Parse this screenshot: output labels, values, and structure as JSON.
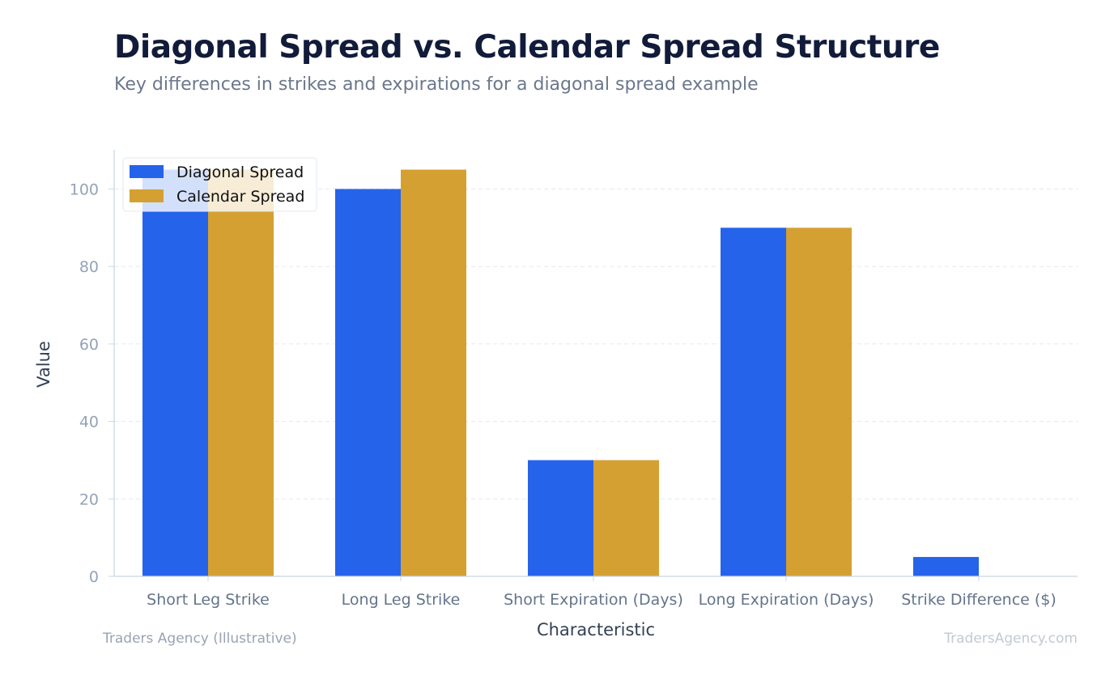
{
  "header": {
    "title": "Diagonal Spread vs. Calendar Spread Structure",
    "subtitle": "Key differences in strikes and expirations for a diagonal spread example"
  },
  "footer": {
    "source": "Traders Agency (Illustrative)",
    "site": "TradersAgency.com"
  },
  "colors": {
    "diagonal": "#2563eb",
    "calendar": "#d4a032",
    "axis_text": "#94a3b8",
    "axis_label": "#334155",
    "grid": "#e5e7eb"
  },
  "chart_data": {
    "type": "bar",
    "categories": [
      "Short Leg Strike",
      "Long Leg Strike",
      "Short Expiration (Days)",
      "Long Expiration (Days)",
      "Strike Difference ($)"
    ],
    "series": [
      {
        "name": "Diagonal Spread",
        "values": [
          105,
          100,
          30,
          90,
          5
        ]
      },
      {
        "name": "Calendar Spread",
        "values": [
          105,
          105,
          30,
          90,
          0
        ]
      }
    ],
    "xlabel": "Characteristic",
    "ylabel": "Value",
    "ylim": [
      0,
      110
    ],
    "yticks": [
      0,
      20,
      40,
      60,
      80,
      100
    ],
    "grid": true,
    "legend_position": "top-left"
  }
}
